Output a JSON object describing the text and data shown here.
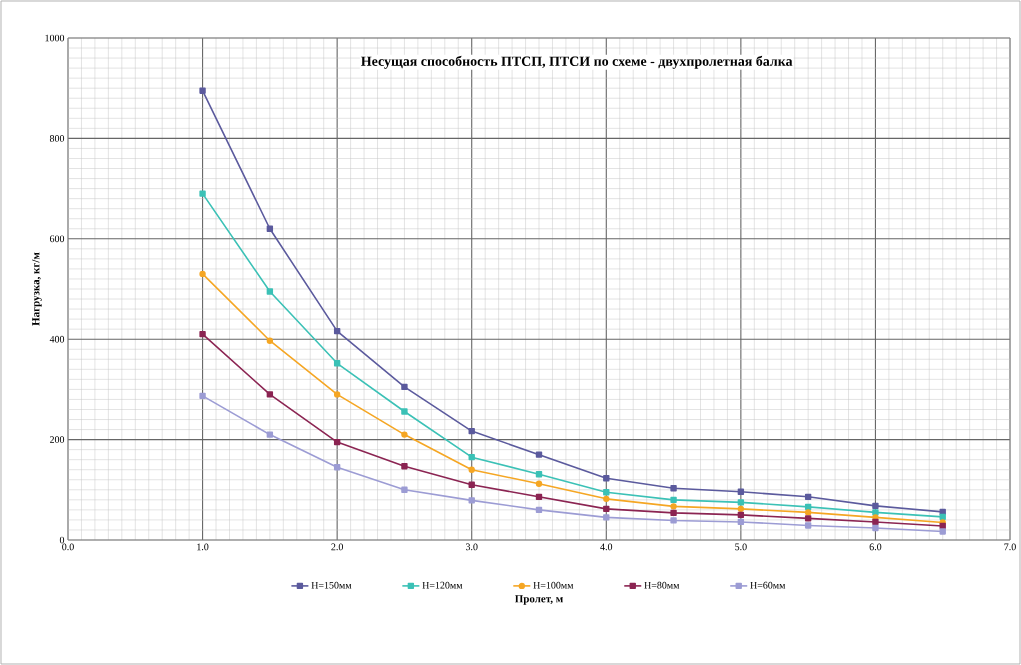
{
  "chart_data": {
    "type": "line",
    "title": "Несущая способность ПТСП, ПТСИ по схеме - двухпролетная балка",
    "xlabel": "Пролет, м",
    "ylabel": "Нагрузка, кг/м",
    "x": [
      1.0,
      1.5,
      2.0,
      2.5,
      3.0,
      3.5,
      4.0,
      4.5,
      5.0,
      5.5,
      6.0,
      6.5
    ],
    "series": [
      {
        "name": "H=150мм",
        "color": "#5b5a9d",
        "marker": "square",
        "values": [
          895,
          620,
          416,
          305,
          217,
          170,
          123,
          103,
          96,
          86,
          68,
          56
        ]
      },
      {
        "name": "H=120мм",
        "color": "#3bc1b6",
        "marker": "square",
        "values": [
          690,
          495,
          352,
          256,
          165,
          131,
          95,
          80,
          75,
          66,
          55,
          46
        ]
      },
      {
        "name": "H=100мм",
        "color": "#f5a623",
        "marker": "circle",
        "values": [
          530,
          397,
          290,
          210,
          140,
          112,
          82,
          67,
          62,
          55,
          45,
          35
        ]
      },
      {
        "name": "H=80мм",
        "color": "#8b2452",
        "marker": "square",
        "values": [
          410,
          290,
          195,
          147,
          110,
          86,
          62,
          54,
          50,
          43,
          36,
          28
        ]
      },
      {
        "name": "H=60мм",
        "color": "#9c9cd4",
        "marker": "square",
        "values": [
          287,
          210,
          145,
          100,
          79,
          60,
          45,
          39,
          36,
          29,
          24,
          17
        ]
      }
    ],
    "xlim": [
      0,
      7
    ],
    "ylim": [
      0,
      1000
    ],
    "xticks": [
      {
        "value": 0,
        "label": "0.0"
      },
      {
        "value": 1,
        "label": "1.0"
      },
      {
        "value": 2,
        "label": "2.0"
      },
      {
        "value": 3,
        "label": "3.0"
      },
      {
        "value": 4,
        "label": "4.0"
      },
      {
        "value": 5,
        "label": "5.0"
      },
      {
        "value": 6,
        "label": "6.0"
      },
      {
        "value": 7,
        "label": "7.0"
      }
    ],
    "yticks": [
      0,
      200,
      400,
      600,
      800,
      1000
    ],
    "grid": true,
    "legend": "bottom",
    "line_style": "solid"
  }
}
